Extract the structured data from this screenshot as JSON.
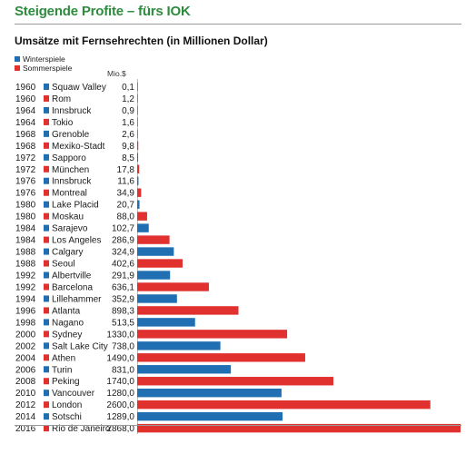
{
  "colors": {
    "winter": "#1f6fb2",
    "summer": "#e0312f",
    "title": "#2e8b3e"
  },
  "chart_data": {
    "type": "bar",
    "orientation": "horizontal",
    "title": "Steigende Profite – fürs IOK",
    "subtitle": "Umsätze mit Fernsehrechten (in Millionen Dollar)",
    "unit_label": "Mio.$",
    "legend": [
      {
        "name": "Winterspiele",
        "type": "winter"
      },
      {
        "name": "Sommerspiele",
        "type": "summer"
      }
    ],
    "xlim": [
      0,
      2868
    ],
    "rows": [
      {
        "year": "1960",
        "city": "Squaw Valley",
        "type": "winter",
        "value": 0.1,
        "label": "0,1"
      },
      {
        "year": "1960",
        "city": "Rom",
        "type": "summer",
        "value": 1.2,
        "label": "1,2"
      },
      {
        "year": "1964",
        "city": "Innsbruck",
        "type": "winter",
        "value": 0.9,
        "label": "0,9"
      },
      {
        "year": "1964",
        "city": "Tokio",
        "type": "summer",
        "value": 1.6,
        "label": "1,6"
      },
      {
        "year": "1968",
        "city": "Grenoble",
        "type": "winter",
        "value": 2.6,
        "label": "2,6"
      },
      {
        "year": "1968",
        "city": "Mexiko-Stadt",
        "type": "summer",
        "value": 9.8,
        "label": "9,8"
      },
      {
        "year": "1972",
        "city": "Sapporo",
        "type": "winter",
        "value": 8.5,
        "label": "8,5"
      },
      {
        "year": "1972",
        "city": "München",
        "type": "summer",
        "value": 17.8,
        "label": "17,8"
      },
      {
        "year": "1976",
        "city": "Innsbruck",
        "type": "winter",
        "value": 11.6,
        "label": "11,6"
      },
      {
        "year": "1976",
        "city": "Montreal",
        "type": "summer",
        "value": 34.9,
        "label": "34,9"
      },
      {
        "year": "1980",
        "city": "Lake Placid",
        "type": "winter",
        "value": 20.7,
        "label": "20,7"
      },
      {
        "year": "1980",
        "city": "Moskau",
        "type": "summer",
        "value": 88.0,
        "label": "88,0"
      },
      {
        "year": "1984",
        "city": "Sarajevo",
        "type": "winter",
        "value": 102.7,
        "label": "102,7"
      },
      {
        "year": "1984",
        "city": "Los Angeles",
        "type": "summer",
        "value": 286.9,
        "label": "286,9"
      },
      {
        "year": "1988",
        "city": "Calgary",
        "type": "winter",
        "value": 324.9,
        "label": "324,9"
      },
      {
        "year": "1988",
        "city": "Seoul",
        "type": "summer",
        "value": 402.6,
        "label": "402,6"
      },
      {
        "year": "1992",
        "city": "Albertville",
        "type": "winter",
        "value": 291.9,
        "label": "291,9"
      },
      {
        "year": "1992",
        "city": "Barcelona",
        "type": "summer",
        "value": 636.1,
        "label": "636,1"
      },
      {
        "year": "1994",
        "city": "Lillehammer",
        "type": "winter",
        "value": 352.9,
        "label": "352,9"
      },
      {
        "year": "1996",
        "city": "Atlanta",
        "type": "summer",
        "value": 898.3,
        "label": "898,3"
      },
      {
        "year": "1998",
        "city": "Nagano",
        "type": "winter",
        "value": 513.5,
        "label": "513,5"
      },
      {
        "year": "2000",
        "city": "Sydney",
        "type": "summer",
        "value": 1330.0,
        "label": "1330,0"
      },
      {
        "year": "2002",
        "city": "Salt Lake City",
        "type": "winter",
        "value": 738.0,
        "label": "738,0"
      },
      {
        "year": "2004",
        "city": "Athen",
        "type": "summer",
        "value": 1490.0,
        "label": "1490,0"
      },
      {
        "year": "2006",
        "city": "Turin",
        "type": "winter",
        "value": 831.0,
        "label": "831,0"
      },
      {
        "year": "2008",
        "city": "Peking",
        "type": "summer",
        "value": 1740.0,
        "label": "1740,0"
      },
      {
        "year": "2010",
        "city": "Vancouver",
        "type": "winter",
        "value": 1280.0,
        "label": "1280,0"
      },
      {
        "year": "2012",
        "city": "London",
        "type": "summer",
        "value": 2600.0,
        "label": "2600,0"
      },
      {
        "year": "2014",
        "city": "Sotschi",
        "type": "winter",
        "value": 1289.0,
        "label": "1289,0"
      },
      {
        "year": "2016",
        "city": "Rio de Janeiro",
        "type": "summer",
        "value": 2868.0,
        "label": "2868,0"
      }
    ]
  }
}
